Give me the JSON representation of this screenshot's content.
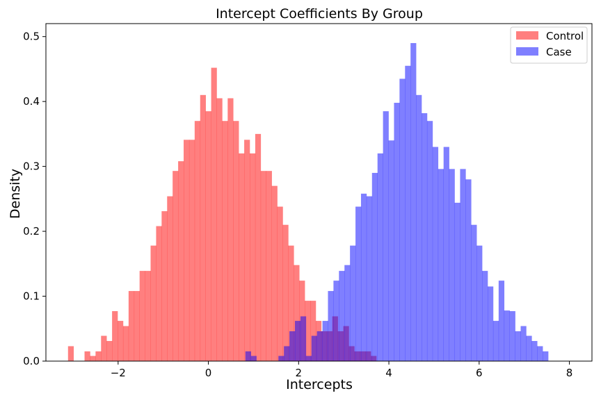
{
  "chart_data": {
    "type": "histogram",
    "title": "Intercept Coefficients By Group",
    "xlabel": "Intercepts",
    "ylabel": "Density",
    "xlim": [
      -3.6,
      8.5
    ],
    "ylim": [
      0,
      0.52
    ],
    "xticks": [
      -2,
      0,
      2,
      4,
      6,
      8
    ],
    "xtick_labels": [
      "−2",
      "0",
      "2",
      "4",
      "6",
      "8"
    ],
    "yticks": [
      0.0,
      0.1,
      0.2,
      0.3,
      0.4,
      0.5
    ],
    "ytick_labels": [
      "0.0",
      "0.1",
      "0.2",
      "0.3",
      "0.4",
      "0.5"
    ],
    "grid": false,
    "legend_position": "top-right",
    "series": [
      {
        "name": "Control",
        "color": "#ff0000",
        "alpha": 0.5,
        "bin_start": -3.11,
        "bin_width": 0.122,
        "densities": [
          0.023,
          0.0,
          0.0,
          0.015,
          0.008,
          0.015,
          0.039,
          0.031,
          0.077,
          0.062,
          0.054,
          0.108,
          0.108,
          0.139,
          0.139,
          0.178,
          0.208,
          0.231,
          0.254,
          0.293,
          0.308,
          0.341,
          0.341,
          0.37,
          0.41,
          0.385,
          0.452,
          0.405,
          0.37,
          0.405,
          0.37,
          0.32,
          0.341,
          0.32,
          0.35,
          0.293,
          0.293,
          0.27,
          0.238,
          0.21,
          0.178,
          0.148,
          0.124,
          0.093,
          0.093,
          0.062,
          0.046,
          0.046,
          0.069,
          0.046,
          0.054,
          0.023,
          0.015,
          0.015,
          0.015,
          0.008
        ]
      },
      {
        "name": "Case",
        "color": "#0000ff",
        "alpha": 0.5,
        "bin_start": 0.82,
        "bin_width": 0.122,
        "densities": [
          0.015,
          0.008,
          0.0,
          0.0,
          0.0,
          0.0,
          0.008,
          0.023,
          0.046,
          0.062,
          0.069,
          0.008,
          0.039,
          0.046,
          0.062,
          0.108,
          0.124,
          0.139,
          0.148,
          0.178,
          0.238,
          0.258,
          0.254,
          0.29,
          0.32,
          0.385,
          0.34,
          0.398,
          0.435,
          0.455,
          0.49,
          0.41,
          0.382,
          0.37,
          0.33,
          0.296,
          0.33,
          0.296,
          0.244,
          0.296,
          0.28,
          0.21,
          0.178,
          0.139,
          0.115,
          0.062,
          0.124,
          0.078,
          0.077,
          0.046,
          0.054,
          0.039,
          0.031,
          0.023,
          0.015,
          0.0,
          0.0,
          0.0,
          0.0,
          0.0,
          0.0,
          0.0,
          0.0,
          0.0,
          0.0,
          0.0,
          0.0,
          0.0,
          0.0,
          0.0,
          0.0,
          0.0,
          0.0,
          0.0,
          0.0,
          0.0,
          0.0,
          0.0,
          0.0,
          0.0,
          0.0,
          0.0,
          0.0,
          0.0,
          0.0
        ]
      }
    ]
  }
}
